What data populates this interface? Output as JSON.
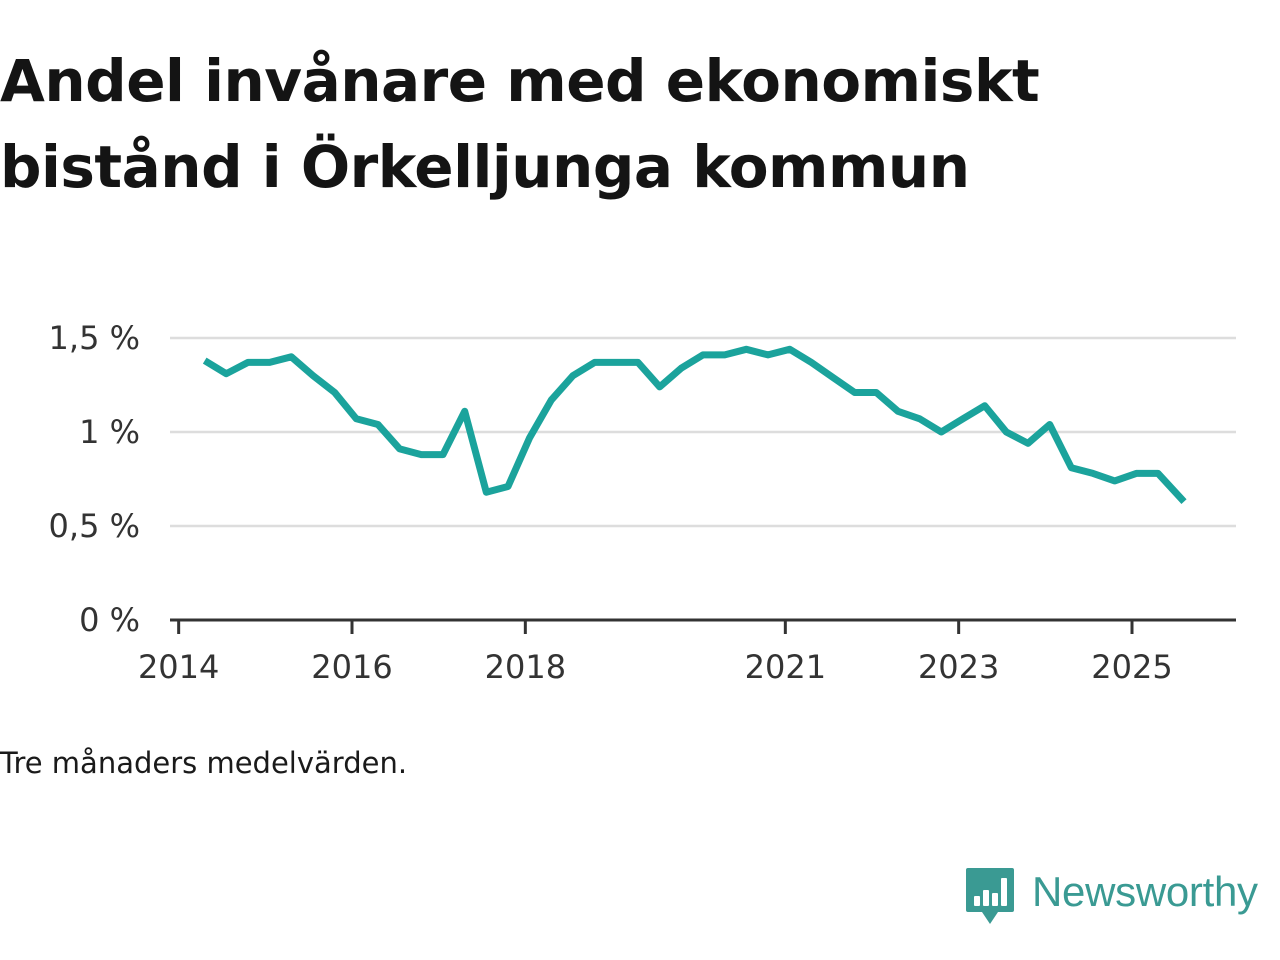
{
  "title": "Andel invånare med ekonomiskt bistånd i Örkelljunga kommun",
  "caption": "Tre månaders medelvärden.",
  "brand": {
    "name": "Newsworthy",
    "color": "#3a9a93",
    "icon": "bar-chart-speech-bubble-icon"
  },
  "chart_data": {
    "type": "line",
    "title": "Andel invånare med ekonomiskt bistånd i Örkelljunga kommun",
    "xlabel": "",
    "ylabel": "",
    "ylim": [
      0,
      1.5
    ],
    "xlim": [
      2013.9,
      2026.2
    ],
    "grid": true,
    "line_color": "#1ba39c",
    "y_ticks": [
      {
        "value": 0,
        "label": "0 %"
      },
      {
        "value": 0.5,
        "label": "0,5 %"
      },
      {
        "value": 1,
        "label": "1 %"
      },
      {
        "value": 1.5,
        "label": "1,5 %"
      }
    ],
    "x_ticks": [
      {
        "value": 2014,
        "label": "2014"
      },
      {
        "value": 2016,
        "label": "2016"
      },
      {
        "value": 2018,
        "label": "2018"
      },
      {
        "value": 2021,
        "label": "2021"
      },
      {
        "value": 2023,
        "label": "2023"
      },
      {
        "value": 2025,
        "label": "2025"
      }
    ],
    "series": [
      {
        "name": "Andel invånare med ekonomiskt bistånd",
        "x": [
          2014.3,
          2014.55,
          2014.8,
          2015.05,
          2015.3,
          2015.55,
          2015.8,
          2016.05,
          2016.3,
          2016.55,
          2016.8,
          2017.05,
          2017.3,
          2017.55,
          2017.8,
          2018.05,
          2018.3,
          2018.55,
          2018.8,
          2019.05,
          2019.3,
          2019.55,
          2019.8,
          2020.05,
          2020.3,
          2020.55,
          2020.8,
          2021.05,
          2021.3,
          2021.55,
          2021.8,
          2022.05,
          2022.3,
          2022.55,
          2022.8,
          2023.05,
          2023.3,
          2023.55,
          2023.8,
          2024.05,
          2024.3,
          2024.55,
          2024.8,
          2025.05,
          2025.3,
          2025.6
        ],
        "values": [
          1.38,
          1.31,
          1.37,
          1.37,
          1.4,
          1.3,
          1.21,
          1.07,
          1.04,
          0.91,
          0.88,
          0.88,
          1.11,
          0.68,
          0.71,
          0.97,
          1.17,
          1.3,
          1.37,
          1.37,
          1.37,
          1.24,
          1.34,
          1.41,
          1.41,
          1.44,
          1.41,
          1.44,
          1.37,
          1.29,
          1.21,
          1.21,
          1.11,
          1.07,
          1.0,
          1.07,
          1.14,
          1.0,
          0.94,
          1.04,
          0.81,
          0.78,
          0.74,
          0.78,
          0.78,
          0.63
        ]
      }
    ]
  }
}
